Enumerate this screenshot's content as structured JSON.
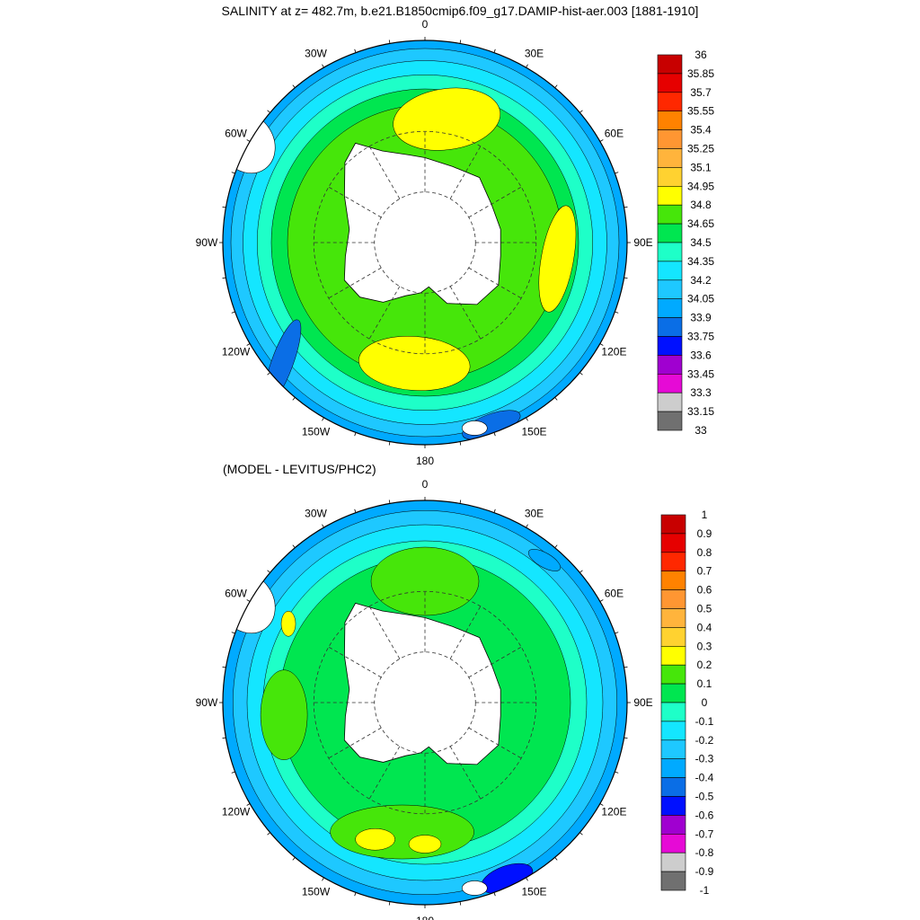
{
  "title": "SALINITY at z= 482.7m, b.e21.B1850cmip6.f09_g17.DAMIP-hist-aer.003 [1881-1910]",
  "subtitle": "(MODEL - LEVITUS/PHC2)",
  "longitude_labels": [
    "0",
    "30E",
    "60E",
    "90E",
    "120E",
    "150E",
    "180",
    "150W",
    "120W",
    "90W",
    "60W",
    "30W"
  ],
  "colors": [
    "#707070",
    "#cdcdcd",
    "#e60ad6",
    "#a000d0",
    "#0010ff",
    "#0a6ee6",
    "#00aaff",
    "#1ec8ff",
    "#14e6ff",
    "#1effc8",
    "#00e650",
    "#46e60a",
    "#ffff00",
    "#ffd230",
    "#ffb43c",
    "#ff9632",
    "#ff8200",
    "#ff2800",
    "#e60000",
    "#c80000"
  ],
  "map_top": {
    "colorbar_labels": [
      "36",
      "35.85",
      "35.7",
      "35.55",
      "35.4",
      "35.25",
      "35.1",
      "34.95",
      "34.8",
      "34.65",
      "34.5",
      "34.35",
      "34.2",
      "34.05",
      "33.9",
      "33.75",
      "33.6",
      "33.45",
      "33.3",
      "33.15",
      "33"
    ],
    "rings": [
      {
        "r": 1.0,
        "level": 6
      },
      {
        "r": 0.96,
        "level": 7
      },
      {
        "r": 0.9,
        "level": 8
      },
      {
        "r": 0.83,
        "level": 9
      },
      {
        "r": 0.76,
        "level": 10
      },
      {
        "r": 0.68,
        "level": 11
      }
    ],
    "patches": [
      {
        "lon": 10,
        "r": 0.62,
        "w": 60,
        "h": 34,
        "rot": -8,
        "level": 12
      },
      {
        "lon": 185,
        "r": 0.6,
        "w": 62,
        "h": 30,
        "rot": 4,
        "level": 12
      },
      {
        "lon": 97,
        "r": 0.66,
        "w": 18,
        "h": 60,
        "rot": 10,
        "level": 12
      },
      {
        "lon": 230,
        "r": 0.92,
        "w": 12,
        "h": 50,
        "rot": 20,
        "level": 5
      },
      {
        "lon": 160,
        "r": 0.96,
        "w": 34,
        "h": 12,
        "rot": -20,
        "level": 5
      }
    ]
  },
  "map_bottom": {
    "colorbar_labels": [
      "1",
      "0.9",
      "0.8",
      "0.7",
      "0.6",
      "0.5",
      "0.4",
      "0.3",
      "0.2",
      "0.1",
      "0",
      "-0.1",
      "-0.2",
      "-0.3",
      "-0.4",
      "-0.5",
      "-0.6",
      "-0.7",
      "-0.8",
      "-0.9",
      "-1"
    ],
    "rings": [
      {
        "r": 1.0,
        "level": 6
      },
      {
        "r": 0.95,
        "level": 7
      },
      {
        "r": 0.88,
        "level": 8
      },
      {
        "r": 0.8,
        "level": 9
      },
      {
        "r": 0.72,
        "level": 10
      }
    ],
    "patches": [
      {
        "lon": 0,
        "r": 0.6,
        "w": 60,
        "h": 38,
        "rot": 0,
        "level": 11
      },
      {
        "lon": 190,
        "r": 0.65,
        "w": 80,
        "h": 30,
        "rot": 0,
        "level": 11
      },
      {
        "lon": 265,
        "r": 0.7,
        "w": 26,
        "h": 50,
        "rot": 0,
        "level": 11
      },
      {
        "lon": 200,
        "r": 0.72,
        "w": 22,
        "h": 12,
        "rot": 0,
        "level": 12
      },
      {
        "lon": 180,
        "r": 0.7,
        "w": 18,
        "h": 10,
        "rot": 0,
        "level": 12
      },
      {
        "lon": 300,
        "r": 0.78,
        "w": 8,
        "h": 14,
        "rot": 0,
        "level": 12
      },
      {
        "lon": 155,
        "r": 0.96,
        "w": 30,
        "h": 14,
        "rot": -20,
        "level": 4
      },
      {
        "lon": 40,
        "r": 0.92,
        "w": 20,
        "h": 8,
        "rot": 30,
        "level": 6
      }
    ]
  }
}
